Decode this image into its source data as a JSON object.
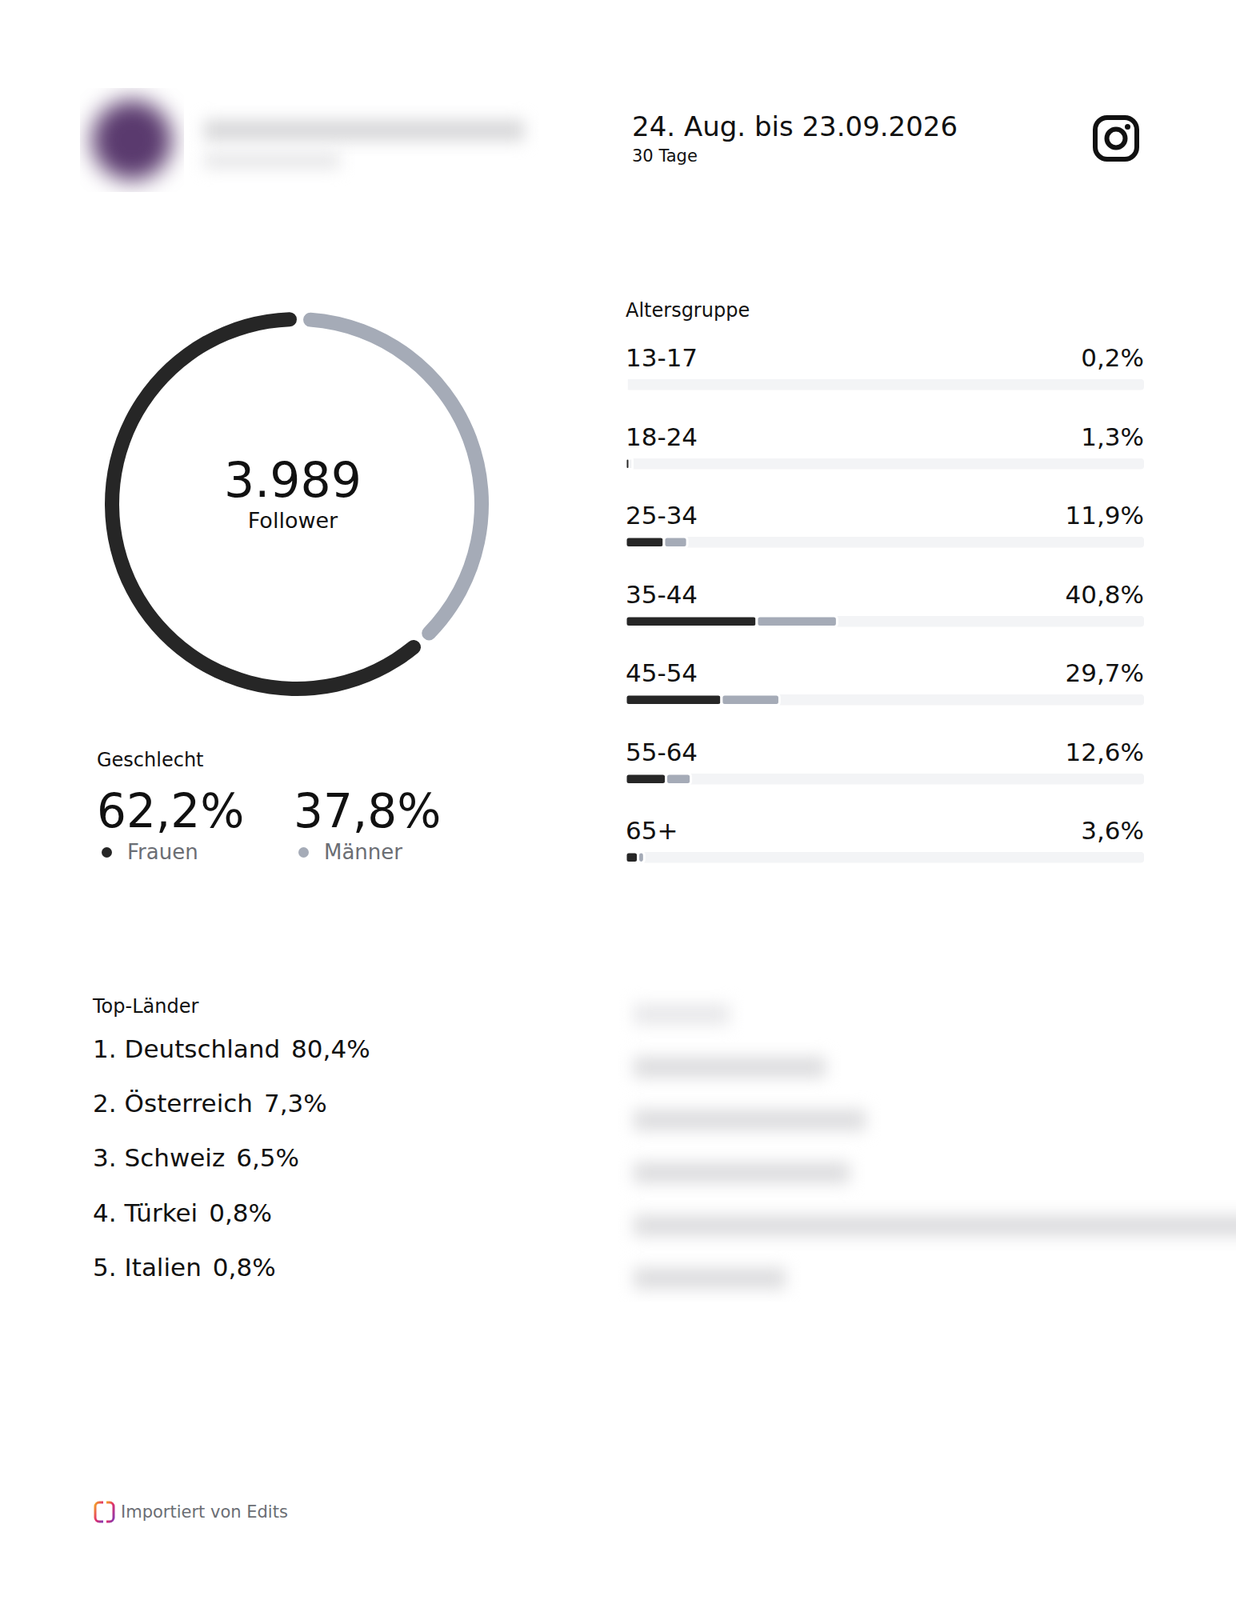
{
  "header": {
    "period": "24. Aug. bis 23.09.2026",
    "duration": "30 Tage"
  },
  "chart_data": [
    {
      "type": "pie",
      "title": "Geschlecht",
      "center_value": "3.989",
      "center_label": "Follower",
      "categories": [
        "Frauen",
        "Männer"
      ],
      "values": [
        62.2,
        37.8
      ],
      "value_labels": [
        "62,2%",
        "37,8%"
      ],
      "colors": [
        "#262626",
        "#a5abb7"
      ]
    },
    {
      "type": "bar",
      "orientation": "horizontal",
      "stacked": true,
      "title": "Altersgruppe",
      "categories": [
        "13-17",
        "18-24",
        "25-34",
        "35-44",
        "45-54",
        "55-64",
        "65+"
      ],
      "series": [
        {
          "color": "#262626",
          "values": [
            0.1,
            0.8,
            7.4,
            25.3,
            18.5,
            7.8,
            2.4
          ]
        },
        {
          "color": "#a5abb7",
          "values": [
            0.1,
            0.5,
            4.5,
            15.5,
            11.2,
            4.8,
            1.2
          ]
        }
      ],
      "totals": [
        "0,2%",
        "1,3%",
        "11,9%",
        "40,8%",
        "29,7%",
        "12,6%",
        "3,6%"
      ],
      "xlim": [
        0,
        100
      ],
      "tick_labels": false
    }
  ],
  "top_countries": {
    "title": "Top-Länder",
    "items": [
      {
        "rank": "1.",
        "name": "Deutschland",
        "share": "80,4%"
      },
      {
        "rank": "2.",
        "name": "Österreich",
        "share": "7,3%"
      },
      {
        "rank": "3.",
        "name": "Schweiz",
        "share": "6,5%"
      },
      {
        "rank": "4.",
        "name": "Türkei",
        "share": "0,8%"
      },
      {
        "rank": "5.",
        "name": "Italien",
        "share": "0,8%"
      }
    ]
  },
  "footer": "Importiert von Edits"
}
